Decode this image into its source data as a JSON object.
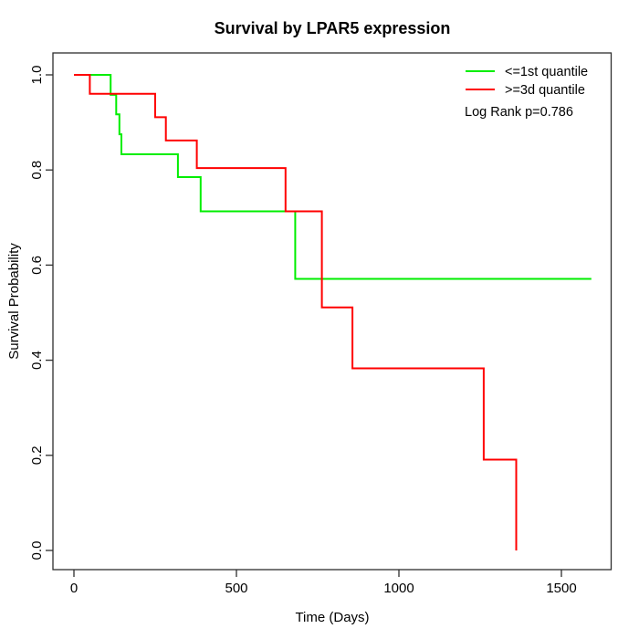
{
  "title": "Survival by LPAR5 expression",
  "axes": {
    "x": {
      "label": "Time (Days)",
      "ticks": [
        "0",
        "500",
        "1000",
        "1500"
      ],
      "tick_values": [
        0,
        500,
        1000,
        1500
      ]
    },
    "y": {
      "label": "Survival Probability",
      "ticks": [
        "0.0",
        "0.2",
        "0.4",
        "0.6",
        "0.8",
        "1.0"
      ],
      "tick_values": [
        0.0,
        0.2,
        0.4,
        0.6,
        0.8,
        1.0
      ]
    }
  },
  "legend": {
    "items": [
      {
        "label": "<=1st quantile",
        "color": "#00ee00"
      },
      {
        "label": ">=3d quantile",
        "color": "#ff0000"
      }
    ]
  },
  "annotation": {
    "log_rank": "Log Rank p=0.786"
  },
  "chart_data": {
    "type": "line",
    "subtype": "kaplan-meier-step",
    "title": "Survival by LPAR5 expression",
    "xlabel": "Time (Days)",
    "ylabel": "Survival Probability",
    "xlim": [
      0,
      1650
    ],
    "ylim": [
      0.0,
      1.0
    ],
    "grid": false,
    "legend_position": "top-right",
    "annotations": [
      "Log Rank p=0.786"
    ],
    "series": [
      {
        "name": "<=1st quantile",
        "color": "#00ee00",
        "step_points_time_survival": [
          [
            0,
            1.0
          ],
          [
            113,
            0.958
          ],
          [
            130,
            0.917
          ],
          [
            140,
            0.875
          ],
          [
            146,
            0.833
          ],
          [
            320,
            0.785
          ],
          [
            390,
            0.713
          ],
          [
            681,
            0.571
          ],
          [
            1592,
            0.571
          ]
        ]
      },
      {
        "name": ">=3d quantile",
        "color": "#ff0000",
        "step_points_time_survival": [
          [
            0,
            1.0
          ],
          [
            49,
            0.96
          ],
          [
            250,
            0.911
          ],
          [
            283,
            0.862
          ],
          [
            378,
            0.804
          ],
          [
            651,
            0.713
          ],
          [
            763,
            0.511
          ],
          [
            857,
            0.383
          ],
          [
            1261,
            0.191
          ],
          [
            1361,
            0.0
          ]
        ]
      }
    ]
  }
}
